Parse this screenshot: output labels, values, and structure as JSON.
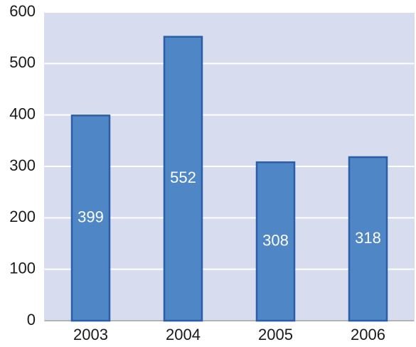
{
  "chart_data": {
    "type": "bar",
    "categories": [
      "2003",
      "2004",
      "2005",
      "2006"
    ],
    "values": [
      399,
      552,
      308,
      318
    ],
    "color": "#4f86c6",
    "ylim": [
      0,
      600
    ],
    "yticks": [
      0,
      100,
      200,
      300,
      400,
      500,
      600
    ],
    "grid": true
  }
}
